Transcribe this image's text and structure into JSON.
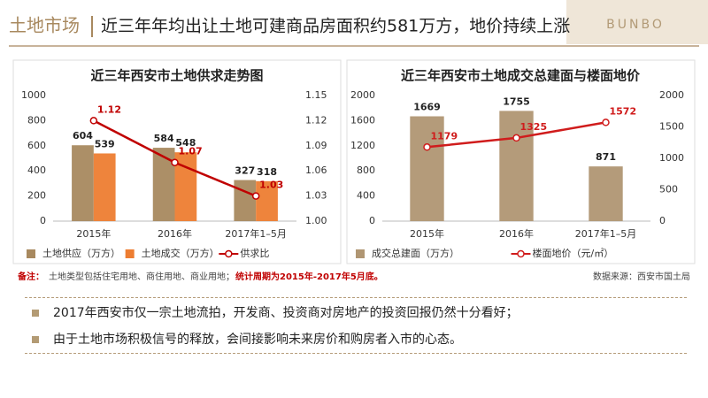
{
  "header": {
    "section": "土地市场",
    "title": "近三年年均出让土地可建商品房面积约581万方，地价持续上涨",
    "logo": "BUNBO"
  },
  "chart_data": [
    {
      "type": "bar",
      "title": "近三年西安市土地供求走势图",
      "categories": [
        "2015年",
        "2016年",
        "2017年1–5月"
      ],
      "ylim": [
        0,
        1000
      ],
      "yticks": [
        0,
        200,
        400,
        600,
        800,
        1000
      ],
      "y2lim": [
        1,
        1.15
      ],
      "y2ticks": [
        {
          "value": 1,
          "label": "1.00"
        },
        1.03,
        1.06,
        1.09,
        1.12,
        1.15
      ],
      "series": [
        {
          "name": "土地供应（万方）",
          "type": "bar",
          "color": "#a8895f",
          "values": [
            604,
            584,
            327
          ]
        },
        {
          "name": "土地成交（万方）",
          "type": "bar",
          "color": "#ed7d31",
          "values": [
            539,
            548,
            318
          ]
        },
        {
          "name": "供求比",
          "type": "line",
          "axis": "y2",
          "color": "#c00000",
          "values": [
            1.12,
            1.07,
            1.03
          ]
        }
      ]
    },
    {
      "type": "bar",
      "title": "近三年西安市土地成交总建面与楼面地价",
      "categories": [
        "2015年",
        "2016年",
        "2017年1–5月"
      ],
      "ylim": [
        0,
        2000
      ],
      "yticks": [
        0,
        400,
        800,
        1200,
        1600,
        2000
      ],
      "y2lim": [
        0,
        2000
      ],
      "y2ticks": [
        0,
        500,
        1000,
        1500,
        2000
      ],
      "series": [
        {
          "name": "成交总建面（万方）",
          "type": "bar",
          "color": "#b09673",
          "values": [
            1669,
            1755,
            871
          ]
        },
        {
          "name": "楼面地价（元/㎡）",
          "type": "line",
          "axis": "y2",
          "color": "#d01c1c",
          "values": [
            1179,
            1325,
            1572
          ]
        }
      ]
    }
  ],
  "footnote": {
    "label": "备注：",
    "text": "土地类型包括住宅用地、商住用地、商业用地；",
    "period": "统计周期为2015年-2017年5月底。"
  },
  "source": "数据来源：西安市国土局",
  "bullets": [
    "2017年西安市仅一宗土地流拍，开发商、投资商对房地产的投资回报仍然十分看好；",
    "由于土地市场积极信号的释放，会间接影响未来房价和购房者入市的心态。"
  ]
}
